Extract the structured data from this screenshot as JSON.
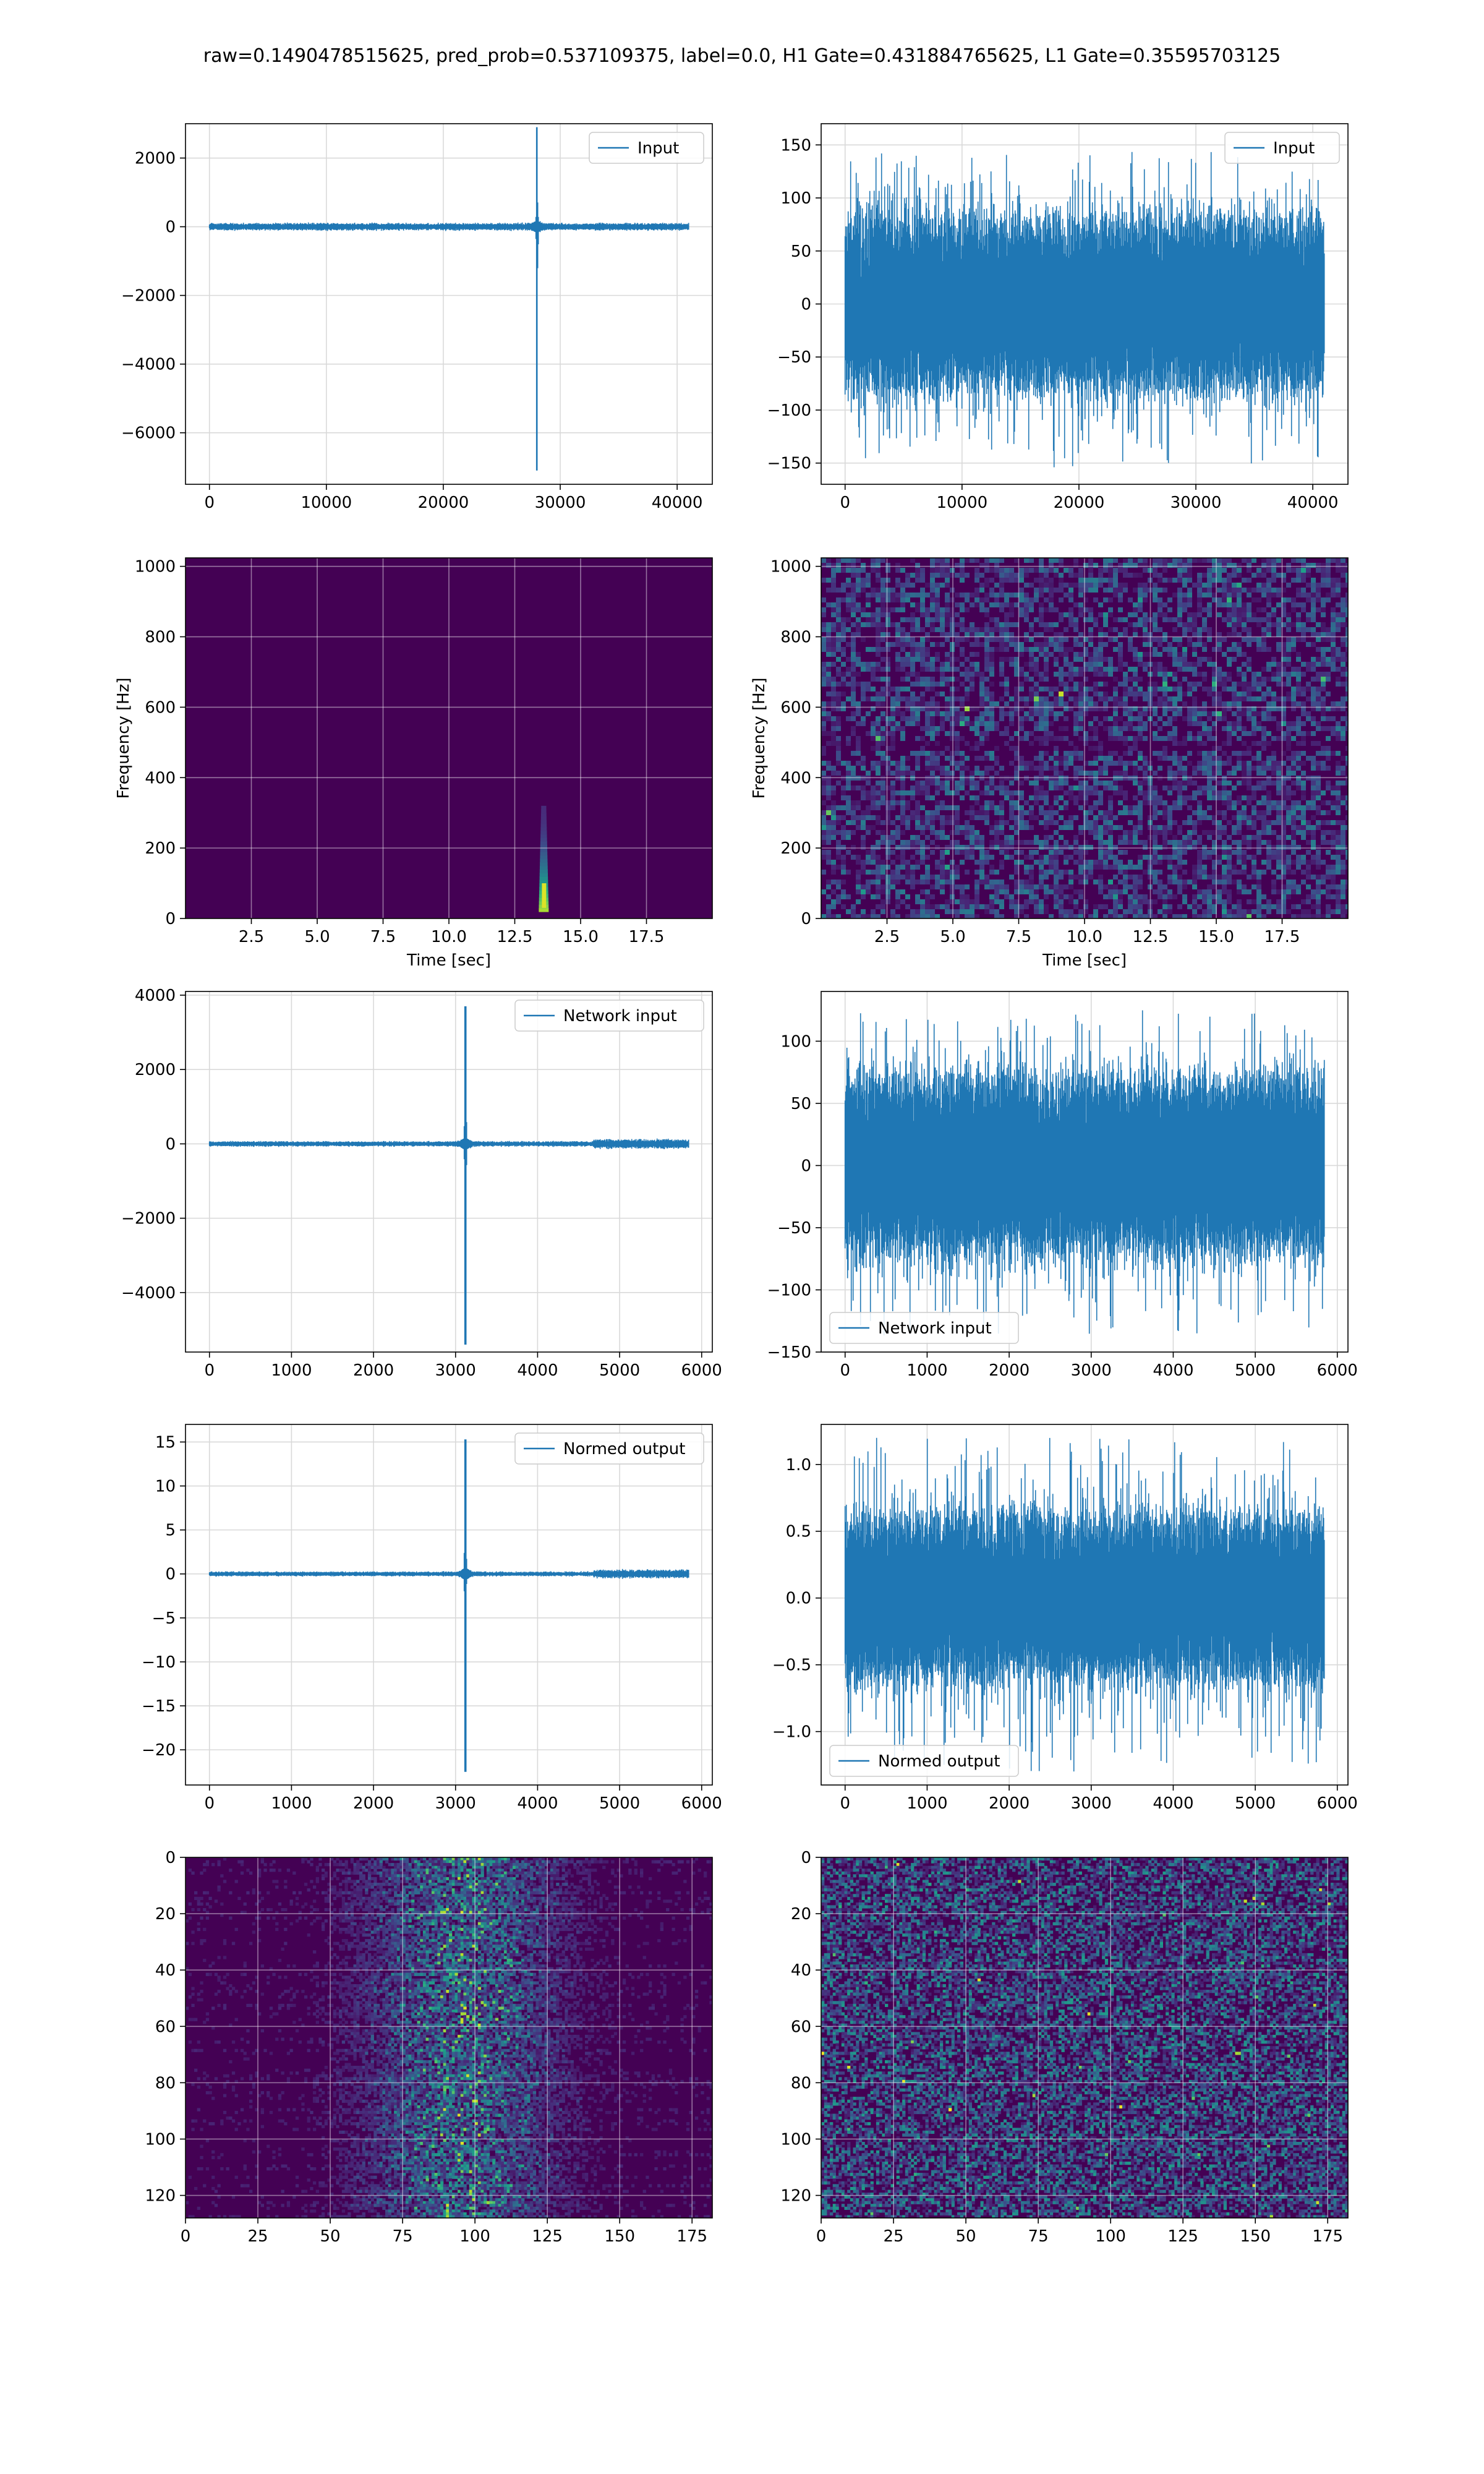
{
  "figure": {
    "suptitle": "raw=0.1490478515625, pred_prob=0.537109375, label=0.0, H1 Gate=0.431884765625, L1 Gate=0.35595703125"
  },
  "colors": {
    "line": "#1f77b4",
    "grid": "#d9d9d9",
    "viridis_low": "#440154",
    "viridis_mid": "#21918c",
    "viridis_high": "#fde725"
  },
  "chart_data": [
    {
      "id": "h1-input",
      "type": "line",
      "legend": "Input",
      "legend_loc": "upper right",
      "xlim": [
        -2048,
        43008
      ],
      "ylim": [
        -7500,
        3000
      ],
      "xticks": [
        0,
        10000,
        20000,
        30000,
        40000
      ],
      "yticks": [
        -6000,
        -4000,
        -2000,
        0,
        2000
      ],
      "xticklabels": [
        "0",
        "10000",
        "20000",
        "30000",
        "40000"
      ],
      "yticklabels": [
        "−6000",
        "−4000",
        "−2000",
        "0",
        "2000"
      ],
      "n_points": 40960,
      "noise_amplitude": 60,
      "spike": {
        "x": 28000,
        "max": 2900,
        "min": -7100
      },
      "grid": true
    },
    {
      "id": "l1-input",
      "type": "line",
      "legend": "Input",
      "legend_loc": "upper right",
      "xlim": [
        -2048,
        43008
      ],
      "ylim": [
        -170,
        170
      ],
      "xticks": [
        0,
        10000,
        20000,
        30000,
        40000
      ],
      "yticks": [
        -150,
        -100,
        -50,
        0,
        50,
        100,
        150
      ],
      "xticklabels": [
        "0",
        "10000",
        "20000",
        "30000",
        "40000"
      ],
      "yticklabels": [
        "−150",
        "−100",
        "−50",
        "0",
        "50",
        "100",
        "150"
      ],
      "n_points": 40960,
      "noise_amplitude": 80,
      "noise_max": 145,
      "noise_min": -155,
      "grid": true
    },
    {
      "id": "h1-spectrogram",
      "type": "heatmap",
      "xlabel": "Time [sec]",
      "ylabel": "Frequency [Hz]",
      "xlim": [
        0,
        20
      ],
      "ylim": [
        0,
        1024
      ],
      "xticks": [
        2.5,
        5.0,
        7.5,
        10.0,
        12.5,
        15.0,
        17.5
      ],
      "yticks": [
        0,
        200,
        400,
        600,
        800,
        1000
      ],
      "xticklabels": [
        "2.5",
        "5.0",
        "7.5",
        "10.0",
        "12.5",
        "15.0",
        "17.5"
      ],
      "yticklabels": [
        "0",
        "200",
        "400",
        "600",
        "800",
        "1000"
      ],
      "colormap": "viridis",
      "feature": {
        "time": 13.6,
        "freq_low": 20,
        "freq_high": 320
      },
      "grid": true
    },
    {
      "id": "l1-spectrogram",
      "type": "heatmap",
      "xlabel": "Time [sec]",
      "ylabel": "Frequency [Hz]",
      "xlim": [
        0,
        20
      ],
      "ylim": [
        0,
        1024
      ],
      "xticks": [
        2.5,
        5.0,
        7.5,
        10.0,
        12.5,
        15.0,
        17.5
      ],
      "yticks": [
        0,
        200,
        400,
        600,
        800,
        1000
      ],
      "xticklabels": [
        "2.5",
        "5.0",
        "7.5",
        "10.0",
        "12.5",
        "15.0",
        "17.5"
      ],
      "yticklabels": [
        "0",
        "200",
        "400",
        "600",
        "800",
        "1000"
      ],
      "colormap": "viridis",
      "dark_band_freq": 500,
      "grid": true
    },
    {
      "id": "h1-network-input",
      "type": "line",
      "legend": "Network input",
      "legend_loc": "upper right",
      "xlim": [
        -292,
        6130
      ],
      "ylim": [
        -5600,
        4100
      ],
      "xticks": [
        0,
        1000,
        2000,
        3000,
        4000,
        5000,
        6000
      ],
      "yticks": [
        -4000,
        -2000,
        0,
        2000,
        4000
      ],
      "xticklabels": [
        "0",
        "1000",
        "2000",
        "3000",
        "4000",
        "5000",
        "6000"
      ],
      "yticklabels": [
        "−4000",
        "−2000",
        "0",
        "2000",
        "4000"
      ],
      "n_points": 5840,
      "noise_amplitude": 40,
      "spike": {
        "x": 3120,
        "max": 3700,
        "min": -5400
      },
      "grid": true
    },
    {
      "id": "l1-network-input",
      "type": "line",
      "legend": "Network input",
      "legend_loc": "lower left",
      "xlim": [
        -292,
        6130
      ],
      "ylim": [
        -150,
        140
      ],
      "xticks": [
        0,
        1000,
        2000,
        3000,
        4000,
        5000,
        6000
      ],
      "yticks": [
        -150,
        -100,
        -50,
        0,
        50,
        100
      ],
      "xticklabels": [
        "0",
        "1000",
        "2000",
        "3000",
        "4000",
        "5000",
        "6000"
      ],
      "yticklabels": [
        "−150",
        "−100",
        "−50",
        "0",
        "50",
        "100"
      ],
      "n_points": 5840,
      "noise_amplitude": 70,
      "noise_max": 125,
      "noise_min": -140,
      "grid": true
    },
    {
      "id": "h1-normed-output",
      "type": "line",
      "legend": "Normed output",
      "legend_loc": "upper right",
      "xlim": [
        -292,
        6130
      ],
      "ylim": [
        -24,
        17
      ],
      "xticks": [
        0,
        1000,
        2000,
        3000,
        4000,
        5000,
        6000
      ],
      "yticks": [
        -20,
        -15,
        -10,
        -5,
        0,
        5,
        10,
        15
      ],
      "xticklabels": [
        "0",
        "1000",
        "2000",
        "3000",
        "4000",
        "5000",
        "6000"
      ],
      "yticklabels": [
        "−20",
        "−15",
        "−10",
        "−5",
        "0",
        "5",
        "10",
        "15"
      ],
      "n_points": 5840,
      "noise_amplitude": 0.15,
      "spike": {
        "x": 3120,
        "max": 15.3,
        "min": -22.5
      },
      "grid": true
    },
    {
      "id": "l1-normed-output",
      "type": "line",
      "legend": "Normed output",
      "legend_loc": "lower left",
      "xlim": [
        -292,
        6130
      ],
      "ylim": [
        -1.4,
        1.3
      ],
      "xticks": [
        0,
        1000,
        2000,
        3000,
        4000,
        5000,
        6000
      ],
      "yticks": [
        -1.0,
        -0.5,
        0.0,
        0.5,
        1.0
      ],
      "xticklabels": [
        "0",
        "1000",
        "2000",
        "3000",
        "4000",
        "5000",
        "6000"
      ],
      "yticklabels": [
        "−1.0",
        "−0.5",
        "0.0",
        "0.5",
        "1.0"
      ],
      "n_points": 5840,
      "noise_amplitude": 0.6,
      "noise_max": 1.2,
      "noise_min": -1.3,
      "grid": true
    },
    {
      "id": "h1-image",
      "type": "heatmap",
      "xlim": [
        0,
        182
      ],
      "ylim": [
        128,
        0
      ],
      "xticks": [
        0,
        25,
        50,
        75,
        100,
        125,
        150,
        175
      ],
      "yticks": [
        0,
        20,
        40,
        60,
        80,
        100,
        120
      ],
      "xticklabels": [
        "0",
        "25",
        "50",
        "75",
        "100",
        "125",
        "150",
        "175"
      ],
      "yticklabels": [
        "0",
        "20",
        "40",
        "60",
        "80",
        "100",
        "120"
      ],
      "colormap": "viridis",
      "energy_center_col": 95,
      "grid": true
    },
    {
      "id": "l1-image",
      "type": "heatmap",
      "xlim": [
        0,
        182
      ],
      "ylim": [
        128,
        0
      ],
      "xticks": [
        0,
        25,
        50,
        75,
        100,
        125,
        150,
        175
      ],
      "yticks": [
        0,
        20,
        40,
        60,
        80,
        100,
        120
      ],
      "xticklabels": [
        "0",
        "25",
        "50",
        "75",
        "100",
        "125",
        "150",
        "175"
      ],
      "yticklabels": [
        "0",
        "20",
        "40",
        "60",
        "80",
        "100",
        "120"
      ],
      "colormap": "viridis",
      "grid": true
    }
  ]
}
